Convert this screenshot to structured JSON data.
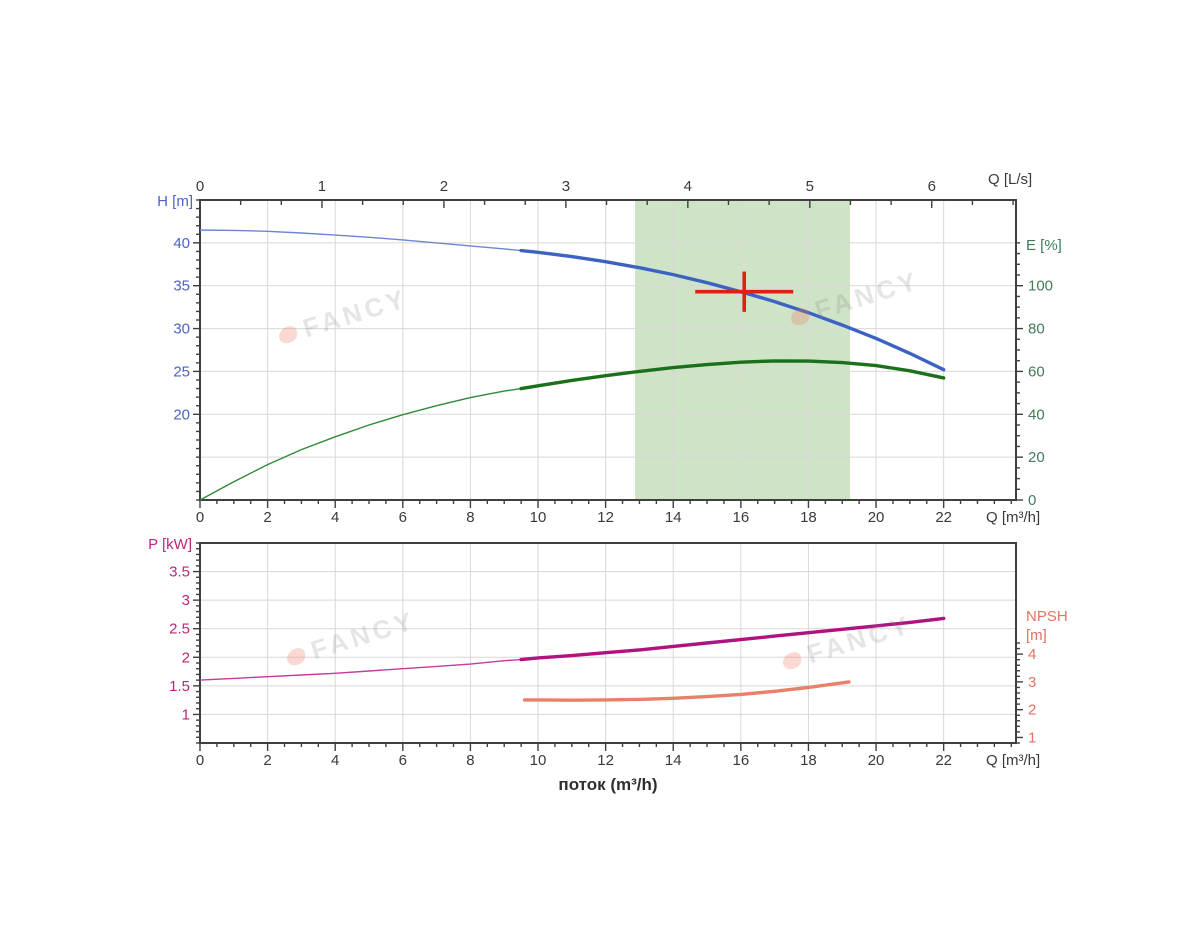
{
  "labels": {
    "h_axis": "H [m]",
    "q_ls_axis": "Q [L/s]",
    "e_axis": "E [%]",
    "q_m3h_axis_top": "Q [m³/h]",
    "p_axis": "P [kW]",
    "npsh_line1": "NPSH",
    "npsh_line2": "[m]",
    "q_m3h_axis_bottom": "Q [m³/h]",
    "flow_caption": "поток (m³/h)",
    "watermark": "FANCY"
  },
  "colors": {
    "band": "#cfe3c6",
    "grid": "#d8d8d8",
    "frame": "#3f3f3f",
    "tick": "#3f3f3f",
    "x_label": "#3a3a3a",
    "left_label_top": "#4a63c8",
    "right_label_top": "#447a58",
    "left_label_bottom": "#bf2579",
    "right_label_bottom": "#e4735f",
    "head_thin": "#6c86d4",
    "head_thick": "#3c63c3",
    "efficiency_thin": "#2f8b37",
    "efficiency_thick": "#1b701b",
    "power_thin": "#c43ba0",
    "power_thick": "#b0127f",
    "npsh_thick": "#e88169",
    "marker": "#e02012"
  },
  "chart_data": [
    {
      "type": "line",
      "title": "Pump head and efficiency curves",
      "x_axis": {
        "label": "Q [m³/h]",
        "range": [
          0,
          24.14
        ],
        "major_ticks": [
          0,
          2,
          4,
          6,
          8,
          10,
          12,
          14,
          16,
          18,
          20,
          22
        ],
        "minor_step": 0.5
      },
      "top_axis": {
        "label": "Q [L/s]",
        "range": [
          0,
          6.69
        ],
        "major_ticks": [
          0,
          1,
          2,
          3,
          4,
          5,
          6
        ],
        "minor_step": 0.3333
      },
      "left_axis": {
        "label": "H [m]",
        "range": [
          10,
          45
        ],
        "major_ticks": [
          20,
          25,
          30,
          35,
          40
        ],
        "minor_step": 1,
        "gridlines": [
          15,
          20,
          25,
          30,
          35,
          40
        ]
      },
      "right_axis": {
        "label": "E [%]",
        "range": [
          0,
          140
        ],
        "major_ticks": [
          0,
          20,
          40,
          60,
          80,
          100
        ],
        "minor_step": 5,
        "tick_span": [
          0,
          120
        ]
      },
      "duty_band_x": [
        12.87,
        19.23
      ],
      "duty_point": {
        "q": 16.1,
        "h": 34.3,
        "q_extent": 1.45,
        "h_extent": 2.35
      },
      "series": [
        {
          "name": "head",
          "axis": "left",
          "thin_until": 9.5,
          "points": [
            [
              0,
              41.5
            ],
            [
              1,
              41.45
            ],
            [
              2,
              41.35
            ],
            [
              3,
              41.15
            ],
            [
              4,
              40.9
            ],
            [
              5,
              40.65
            ],
            [
              6,
              40.35
            ],
            [
              7,
              40.0
            ],
            [
              8,
              39.65
            ],
            [
              9,
              39.3
            ],
            [
              9.5,
              39.1
            ],
            [
              10,
              38.9
            ],
            [
              11,
              38.4
            ],
            [
              12,
              37.8
            ],
            [
              13,
              37.1
            ],
            [
              14,
              36.3
            ],
            [
              15,
              35.35
            ],
            [
              16,
              34.3
            ],
            [
              17,
              33.15
            ],
            [
              18,
              31.85
            ],
            [
              19,
              30.4
            ],
            [
              20,
              28.85
            ],
            [
              21,
              27.1
            ],
            [
              22,
              25.2
            ]
          ]
        },
        {
          "name": "efficiency",
          "axis": "right",
          "thin_until": 9.5,
          "points": [
            [
              0,
              0
            ],
            [
              1,
              8.5
            ],
            [
              2,
              16.5
            ],
            [
              3,
              23.5
            ],
            [
              4,
              29.5
            ],
            [
              5,
              35
            ],
            [
              6,
              39.8
            ],
            [
              7,
              44
            ],
            [
              8,
              47.8
            ],
            [
              9,
              50.8
            ],
            [
              9.5,
              52
            ],
            [
              10,
              53.3
            ],
            [
              11,
              55.8
            ],
            [
              12,
              58
            ],
            [
              13,
              60
            ],
            [
              14,
              61.8
            ],
            [
              15,
              63.2
            ],
            [
              16,
              64.3
            ],
            [
              17,
              64.9
            ],
            [
              18,
              64.8
            ],
            [
              19,
              64.1
            ],
            [
              20,
              62.7
            ],
            [
              21,
              60.3
            ],
            [
              22,
              57
            ]
          ]
        }
      ]
    },
    {
      "type": "line",
      "title": "Pump power and NPSH curves",
      "x_axis": {
        "label": "Q [m³/h]",
        "range": [
          0,
          24.14
        ],
        "major_ticks": [
          0,
          2,
          4,
          6,
          8,
          10,
          12,
          14,
          16,
          18,
          20,
          22
        ],
        "minor_step": 0.5
      },
      "left_axis": {
        "label": "P [kW]",
        "range": [
          0.5,
          4.0
        ],
        "major_ticks": [
          1,
          1.5,
          2,
          2.5,
          3,
          3.5
        ],
        "minor_step": 0.1,
        "gridlines": [
          1,
          1.5,
          2,
          2.5,
          3,
          3.5
        ]
      },
      "right_axis": {
        "label": "NPSH [m]",
        "range": [
          0.8,
          8.0
        ],
        "major_ticks": [
          1,
          2,
          3,
          4
        ],
        "minor_step": 0.2,
        "tick_span": [
          0.8,
          4.5
        ]
      },
      "series": [
        {
          "name": "power",
          "axis": "left",
          "thin_until": 9.5,
          "points": [
            [
              0,
              1.6
            ],
            [
              1,
              1.63
            ],
            [
              2,
              1.66
            ],
            [
              3,
              1.69
            ],
            [
              4,
              1.72
            ],
            [
              5,
              1.76
            ],
            [
              6,
              1.8
            ],
            [
              7,
              1.84
            ],
            [
              8,
              1.88
            ],
            [
              9,
              1.94
            ],
            [
              9.5,
              1.96
            ],
            [
              10,
              1.99
            ],
            [
              11,
              2.03
            ],
            [
              12,
              2.08
            ],
            [
              13,
              2.13
            ],
            [
              14,
              2.19
            ],
            [
              15,
              2.25
            ],
            [
              16,
              2.31
            ],
            [
              17,
              2.37
            ],
            [
              18,
              2.43
            ],
            [
              19,
              2.49
            ],
            [
              20,
              2.55
            ],
            [
              21,
              2.61
            ],
            [
              22,
              2.68
            ]
          ]
        },
        {
          "name": "npsh",
          "axis": "right",
          "thin_until": null,
          "points": [
            [
              9.6,
              2.35
            ],
            [
              10,
              2.35
            ],
            [
              11,
              2.34
            ],
            [
              12,
              2.35
            ],
            [
              13,
              2.37
            ],
            [
              14,
              2.41
            ],
            [
              15,
              2.47
            ],
            [
              16,
              2.55
            ],
            [
              17,
              2.66
            ],
            [
              18,
              2.8
            ],
            [
              19.2,
              3.0
            ]
          ]
        }
      ]
    }
  ]
}
